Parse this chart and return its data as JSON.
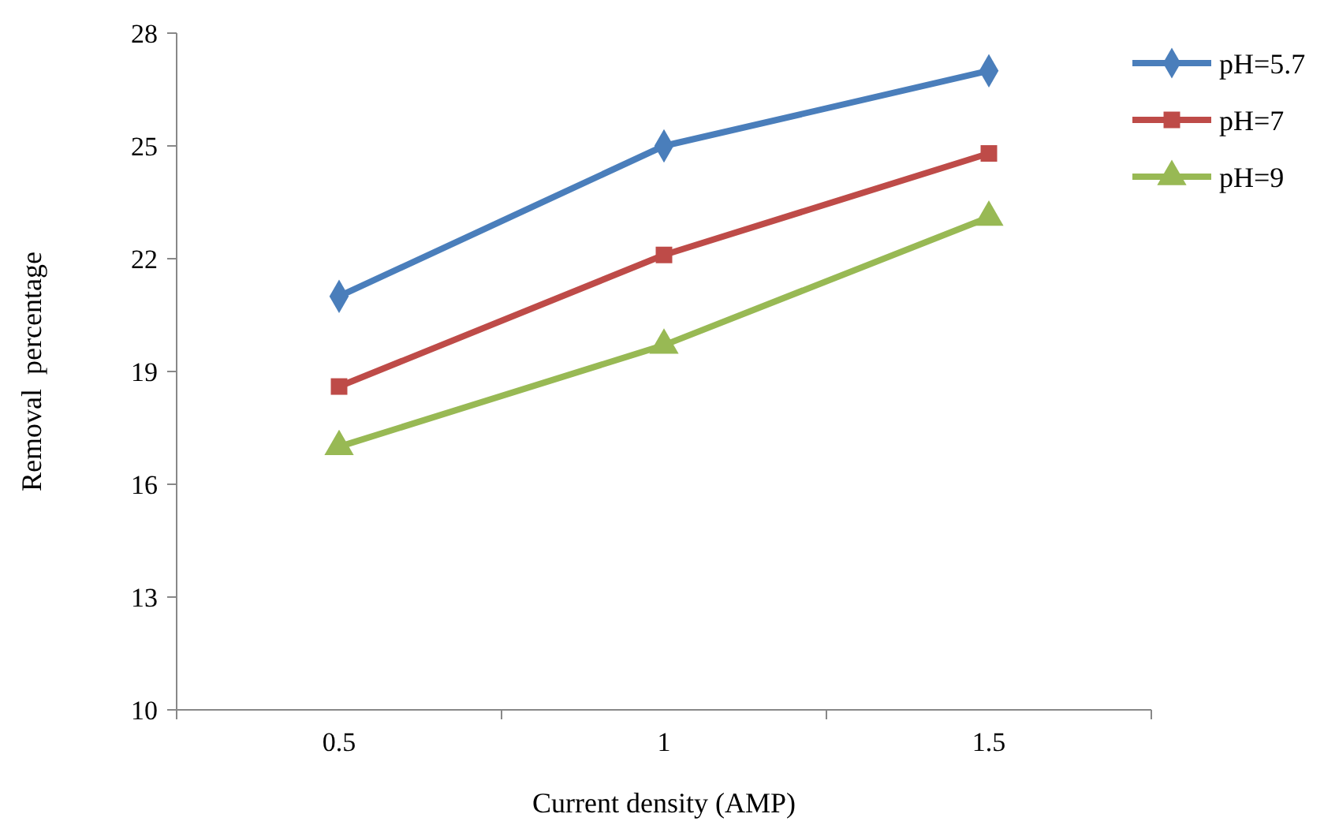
{
  "chart_data": {
    "type": "line",
    "xlabel": "Current density (AMP)",
    "ylabel": "Removal  percentage",
    "categories": [
      "0.5",
      "1",
      "1.5"
    ],
    "ylim": [
      10,
      28
    ],
    "yticks": [
      10,
      13,
      16,
      19,
      22,
      25,
      28
    ],
    "grid": false,
    "legend": "top right",
    "line_style": "solid",
    "series": [
      {
        "name": "pH=5.7",
        "color": "#4a7ebb",
        "marker": "diamond",
        "values": [
          21.0,
          25.0,
          27.0
        ]
      },
      {
        "name": "pH=7",
        "color": "#be4b48",
        "marker": "square",
        "values": [
          18.6,
          22.1,
          24.8
        ]
      },
      {
        "name": "pH=9",
        "color": "#98b954",
        "marker": "triangle",
        "values": [
          17.0,
          19.7,
          23.1
        ]
      }
    ]
  }
}
